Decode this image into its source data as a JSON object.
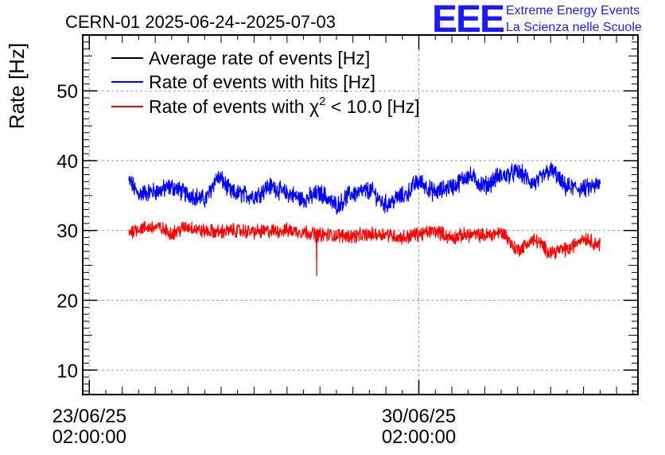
{
  "chart_data": {
    "type": "line",
    "title": "CERN-01 2025-06-24--2025-07-03",
    "xlabel": "",
    "ylabel": "Rate [Hz]",
    "ylim": [
      6.5,
      58
    ],
    "xlim_days": [
      -0.2,
      16.65
    ],
    "x_ticks": [
      {
        "day": 0,
        "label_date": "23/06/25",
        "label_time": "02:00:00"
      },
      {
        "day": 10,
        "label_date": "30/06/25",
        "label_time": "02:00:00"
      }
    ],
    "y_ticks": [
      10,
      20,
      30,
      40,
      50
    ],
    "grid": true,
    "legend_placement": "top-left",
    "series": [
      {
        "name": "Average rate of events [Hz]",
        "color": "#000000",
        "x_days": [],
        "values": []
      },
      {
        "name": "Rate of events with hits [Hz]",
        "color": "#0000ff",
        "noise": 1.1,
        "x_days": [
          1.2,
          1.5,
          2.0,
          2.5,
          3.0,
          3.5,
          3.9,
          4.4,
          5.0,
          5.5,
          6.0,
          6.5,
          7.0,
          7.5,
          8.0,
          8.5,
          9.0,
          9.5,
          10.0,
          10.5,
          11.0,
          11.5,
          12.0,
          12.5,
          13.0,
          13.5,
          14.0,
          14.5,
          15.0,
          15.5
        ],
        "values": [
          37.0,
          35.3,
          35.6,
          36.2,
          35.2,
          34.5,
          37.5,
          35.3,
          35.0,
          36.3,
          35.3,
          34.5,
          35.3,
          33.7,
          35.3,
          35.7,
          33.8,
          34.9,
          36.9,
          35.5,
          36.3,
          37.8,
          36.5,
          37.8,
          38.3,
          36.8,
          38.5,
          36.2,
          36.0,
          36.5
        ]
      },
      {
        "name": "Rate of events with χ² < 10.0 [Hz]",
        "label_main": "Rate of events with ",
        "label_chi": "χ",
        "label_sup": "2",
        "label_rest": " < 10.0 [Hz]",
        "color": "#ff0000",
        "noise": 0.85,
        "dip": {
          "day": 6.9,
          "value": 23.5
        },
        "x_days": [
          1.2,
          1.5,
          2.0,
          2.5,
          3.0,
          3.5,
          3.9,
          4.4,
          5.0,
          5.5,
          6.0,
          6.5,
          7.0,
          7.5,
          8.0,
          8.5,
          9.0,
          9.5,
          10.0,
          10.5,
          11.0,
          11.5,
          12.0,
          12.5,
          13.0,
          13.5,
          14.0,
          14.5,
          15.0,
          15.5
        ],
        "values": [
          29.8,
          30.3,
          30.5,
          29.7,
          30.5,
          29.9,
          29.8,
          30.0,
          29.8,
          29.9,
          30.0,
          29.8,
          29.4,
          29.3,
          29.2,
          29.4,
          29.5,
          29.0,
          29.5,
          29.9,
          29.0,
          29.4,
          29.3,
          29.7,
          27.3,
          28.6,
          27.0,
          27.3,
          28.9,
          28.0
        ]
      }
    ]
  },
  "logo": {
    "mark": "EEE",
    "line1": "Extreme Energy Events",
    "line2": "La Scienza nelle Scuole",
    "color": "#1a1aff"
  }
}
